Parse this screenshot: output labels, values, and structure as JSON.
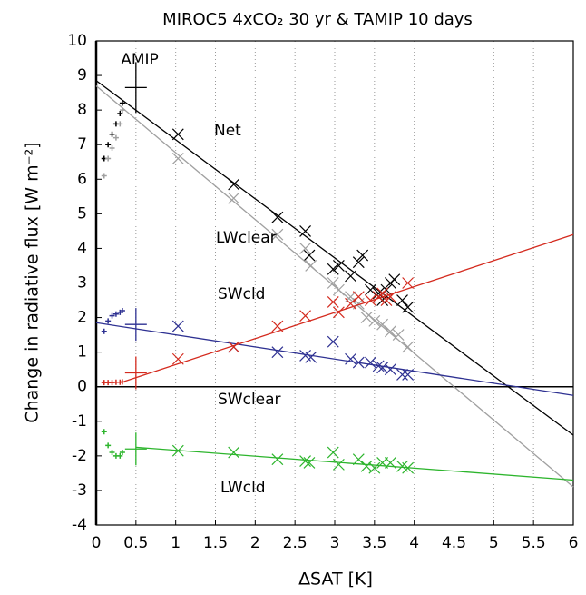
{
  "chart_data": {
    "type": "scatter",
    "title": "MIROC5 4xCO₂ 30 yr & TAMIP 10 days",
    "x_label": "ΔSAT [K]",
    "y_label": "Change in radiative flux [W m⁻²]",
    "annotation": "AMIP",
    "xlim": [
      0,
      6
    ],
    "xticks": [
      0,
      0.5,
      1,
      1.5,
      2,
      2.5,
      3,
      3.5,
      4,
      4.5,
      5,
      5.5,
      6
    ],
    "ylim": [
      -4,
      10
    ],
    "yticks": [
      -4,
      -3,
      -2,
      -1,
      0,
      1,
      2,
      3,
      4,
      5,
      6,
      7,
      8,
      9,
      10
    ],
    "grid": true,
    "tamip_x": [
      0.1,
      0.15,
      0.2,
      0.25,
      0.3,
      0.33
    ],
    "amip_x": 0.5,
    "series": [
      {
        "name": "Net",
        "color": "#000000",
        "x": [
          1.03,
          1.73,
          2.28,
          2.63,
          2.68,
          2.98,
          3.05,
          3.2,
          3.3,
          3.35,
          3.45,
          3.55,
          3.6,
          3.65,
          3.7,
          3.75,
          3.85,
          3.92
        ],
        "values": [
          7.3,
          5.85,
          4.9,
          4.5,
          3.8,
          3.4,
          3.5,
          3.2,
          3.6,
          3.8,
          2.8,
          2.7,
          2.5,
          2.8,
          3.0,
          3.1,
          2.5,
          2.3
        ],
        "fit_x": [
          0,
          6
        ],
        "fit_values": [
          8.85,
          -1.4
        ],
        "tamip_values": [
          6.6,
          7.0,
          7.3,
          7.6,
          7.9,
          8.2
        ],
        "amip_value": 8.65
      },
      {
        "name": "LWclear",
        "color": "#a0a0a0",
        "x": [
          1.03,
          1.73,
          2.28,
          2.63,
          2.7,
          2.98,
          3.05,
          3.2,
          3.3,
          3.4,
          3.5,
          3.6,
          3.7,
          3.8,
          3.92
        ],
        "values": [
          6.6,
          5.45,
          4.4,
          4.0,
          3.5,
          3.0,
          2.8,
          2.6,
          2.4,
          2.0,
          1.9,
          1.8,
          1.6,
          1.5,
          1.15
        ],
        "fit_x": [
          0,
          6
        ],
        "fit_values": [
          8.7,
          -2.9
        ],
        "tamip_values": [
          6.1,
          6.6,
          6.9,
          7.2,
          7.6,
          8.0
        ]
      },
      {
        "name": "SWcld",
        "color": "#2e3192",
        "x": [
          1.03,
          1.73,
          2.28,
          2.63,
          2.7,
          2.98,
          3.2,
          3.3,
          3.45,
          3.55,
          3.6,
          3.7,
          3.85,
          3.92
        ],
        "values": [
          1.75,
          1.15,
          1.0,
          0.9,
          0.85,
          1.3,
          0.8,
          0.7,
          0.7,
          0.6,
          0.55,
          0.5,
          0.35,
          0.35
        ],
        "fit_x": [
          0,
          6
        ],
        "fit_values": [
          1.85,
          -0.25
        ],
        "tamip_values": [
          1.6,
          1.9,
          2.05,
          2.1,
          2.15,
          2.2
        ],
        "amip_value": 1.8
      },
      {
        "name": "SWclear",
        "color": "#d42a1e",
        "x": [
          1.03,
          1.73,
          2.28,
          2.63,
          2.98,
          3.05,
          3.2,
          3.3,
          3.45,
          3.55,
          3.6,
          3.65,
          3.7,
          3.92
        ],
        "values": [
          0.8,
          1.15,
          1.75,
          2.05,
          2.45,
          2.15,
          2.4,
          2.6,
          2.5,
          2.6,
          2.7,
          2.5,
          2.6,
          3.0
        ],
        "fit_x": [
          0.35,
          6
        ],
        "fit_values": [
          0.15,
          4.4
        ],
        "tamip_values": [
          0.12,
          0.12,
          0.12,
          0.13,
          0.13,
          0.14
        ],
        "amip_value": 0.4
      },
      {
        "name": "LWcld",
        "color": "#2db52d",
        "x": [
          1.03,
          1.73,
          2.28,
          2.63,
          2.68,
          2.98,
          3.05,
          3.3,
          3.4,
          3.5,
          3.6,
          3.7,
          3.85,
          3.92
        ],
        "values": [
          -1.85,
          -1.9,
          -2.1,
          -2.15,
          -2.2,
          -1.9,
          -2.25,
          -2.1,
          -2.3,
          -2.35,
          -2.2,
          -2.2,
          -2.3,
          -2.35
        ],
        "fit_x": [
          0.5,
          6
        ],
        "fit_values": [
          -1.75,
          -2.7
        ],
        "tamip_values": [
          -1.3,
          -1.7,
          -1.9,
          -2.0,
          -2.0,
          -1.9
        ],
        "amip_value": -1.8
      }
    ]
  }
}
